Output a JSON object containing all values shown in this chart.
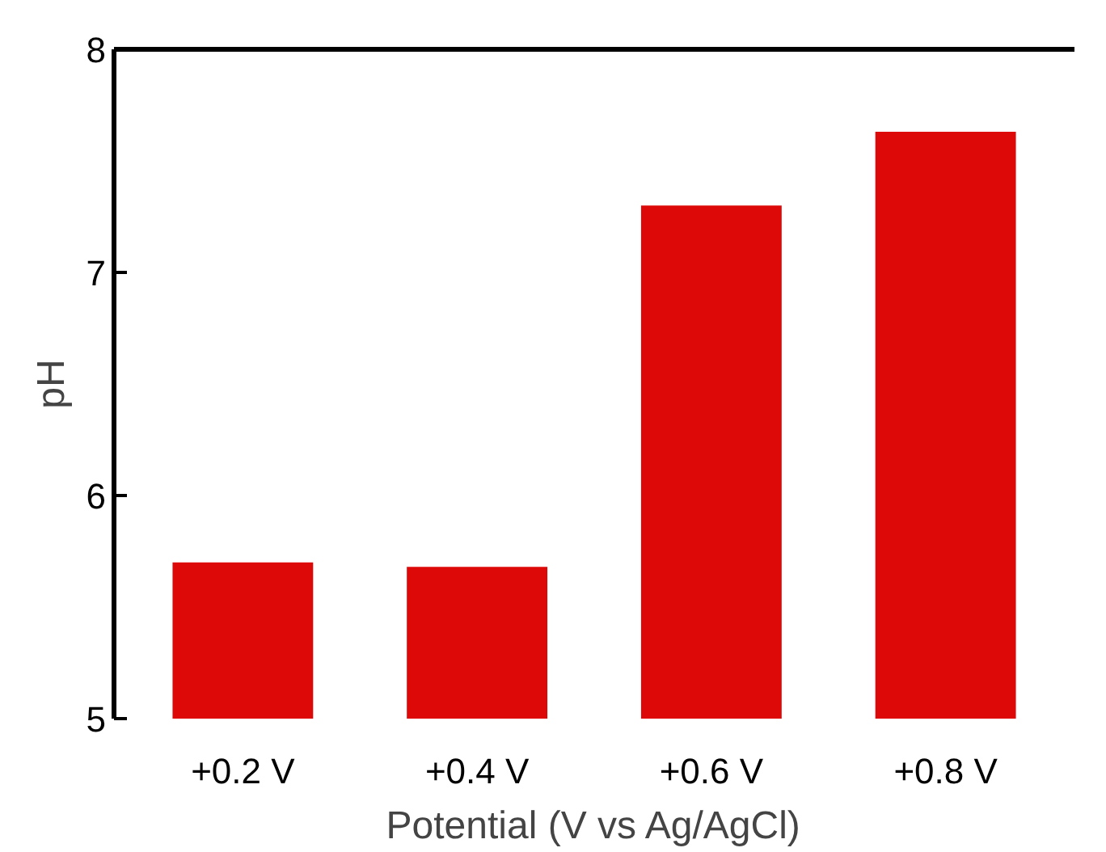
{
  "chart_data": {
    "type": "bar",
    "xlabel": "Potential (V vs Ag/AgCl)",
    "ylabel": "pH",
    "categories": [
      "+0.2 V",
      "+0.4 V",
      "+0.6 V",
      "+0.8 V"
    ],
    "values": [
      5.7,
      5.68,
      7.3,
      7.63
    ],
    "color": "#dd0808",
    "ylim": [
      5,
      8
    ],
    "yticks": [
      5,
      6,
      7,
      8
    ],
    "grid": false
  }
}
